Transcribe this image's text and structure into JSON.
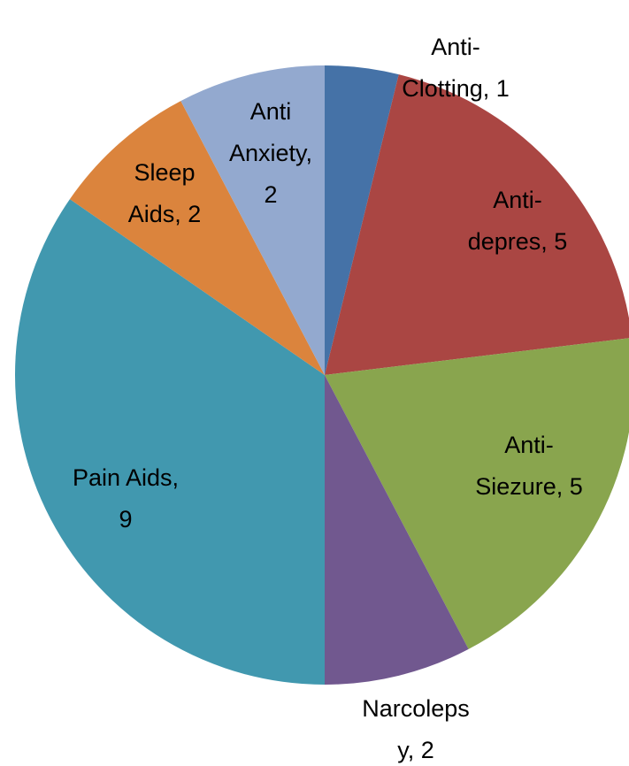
{
  "chart_data": {
    "type": "pie",
    "values": [
      1,
      5,
      5,
      2,
      9,
      2,
      2
    ],
    "value_labels": [
      [
        "Anti-",
        "Clotting, 1"
      ],
      [
        "Anti-",
        "depres, 5"
      ],
      [
        "Anti-",
        "Siezure, 5"
      ],
      [
        "Narcoleps",
        "y, 2"
      ],
      [
        "Pain Aids,",
        "9"
      ],
      [
        "Sleep",
        "Aids, 2"
      ],
      [
        "Anti",
        "Anxiety,",
        "2"
      ]
    ],
    "colors": [
      "#4572a7",
      "#aa4643",
      "#89a54e",
      "#71588f",
      "#4198af",
      "#db843d",
      "#93a9cf"
    ]
  }
}
